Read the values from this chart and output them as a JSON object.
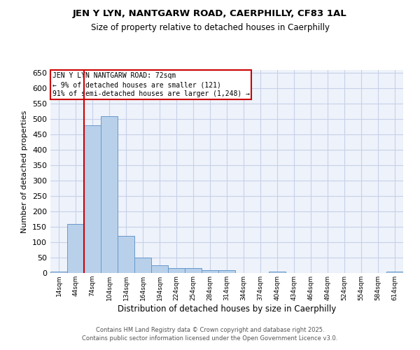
{
  "title1": "JEN Y LYN, NANTGARW ROAD, CAERPHILLY, CF83 1AL",
  "title2": "Size of property relative to detached houses in Caerphilly",
  "xlabel": "Distribution of detached houses by size in Caerphilly",
  "ylabel": "Number of detached properties",
  "bin_labels": [
    "14sqm",
    "44sqm",
    "74sqm",
    "104sqm",
    "134sqm",
    "164sqm",
    "194sqm",
    "224sqm",
    "254sqm",
    "284sqm",
    "314sqm",
    "344sqm",
    "374sqm",
    "404sqm",
    "434sqm",
    "464sqm",
    "494sqm",
    "524sqm",
    "554sqm",
    "584sqm",
    "614sqm"
  ],
  "bar_values": [
    5,
    160,
    480,
    510,
    120,
    50,
    25,
    15,
    15,
    10,
    8,
    0,
    0,
    5,
    0,
    0,
    0,
    0,
    0,
    0,
    5
  ],
  "bar_color": "#b8d0ea",
  "bar_edge_color": "#6699cc",
  "red_line_index": 1.5,
  "ylim": [
    0,
    660
  ],
  "yticks": [
    0,
    50,
    100,
    150,
    200,
    250,
    300,
    350,
    400,
    450,
    500,
    550,
    600,
    650
  ],
  "annotation_line1": "JEN Y LYN NANTGARW ROAD: 72sqm",
  "annotation_line2": "← 9% of detached houses are smaller (121)",
  "annotation_line3": "91% of semi-detached houses are larger (1,248) →",
  "annotation_box_color": "#ffffff",
  "annotation_box_edge": "#cc0000",
  "red_line_color": "#cc0000",
  "footer1": "Contains HM Land Registry data © Crown copyright and database right 2025.",
  "footer2": "Contains public sector information licensed under the Open Government Licence v3.0.",
  "bg_color": "#eef2fa",
  "grid_color": "#c8d0e8"
}
